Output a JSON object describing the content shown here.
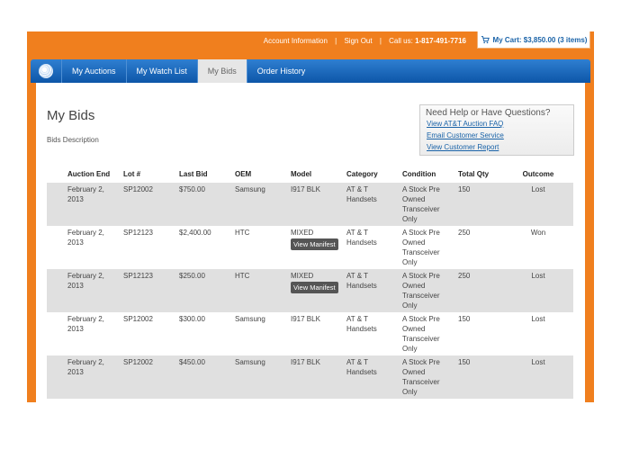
{
  "topbar": {
    "account_info": "Account Information",
    "sign_out": "Sign Out",
    "call_us_label": "Call us:",
    "phone": "1-817-491-7716",
    "cart": "My Cart: $3,850.00 (3 items)",
    "separator": "|"
  },
  "nav": {
    "logo_icon": "att-globe-icon",
    "items": [
      {
        "label": "My Auctions"
      },
      {
        "label": "My Watch List"
      },
      {
        "label": "My Bids"
      },
      {
        "label": "Order History"
      }
    ],
    "active_index": 2
  },
  "page": {
    "title": "My Bids",
    "description": "Bids Description"
  },
  "help": {
    "title": "Need Help or Have Questions?",
    "links": [
      "View AT&T Auction FAQ",
      "Email Customer Service",
      "View Customer Report"
    ]
  },
  "table": {
    "columns": [
      "Auction End",
      "Lot #",
      "Last Bid",
      "OEM",
      "Model",
      "Category",
      "Condition",
      "Total Qty",
      "Outcome"
    ],
    "manifest_label": "View Manifest",
    "rows": [
      {
        "auction_end": "February 2, 2013",
        "lot": "SP12002",
        "last_bid": "$750.00",
        "oem": "Samsung",
        "model": "I917 BLK",
        "manifest": false,
        "category": "AT & T Handsets",
        "condition": "A Stock Pre Owned Transceiver Only",
        "qty": "150",
        "outcome": "Lost"
      },
      {
        "auction_end": "February 2, 2013",
        "lot": "SP12123",
        "last_bid": "$2,400.00",
        "oem": "HTC",
        "model": "MIXED",
        "manifest": true,
        "category": "AT & T Handsets",
        "condition": "A Stock Pre Owned Transceiver Only",
        "qty": "250",
        "outcome": "Won"
      },
      {
        "auction_end": "February 2, 2013",
        "lot": "SP12123",
        "last_bid": "$250.00",
        "oem": "HTC",
        "model": "MIXED",
        "manifest": true,
        "category": "AT & T Handsets",
        "condition": "A Stock Pre Owned Transceiver Only",
        "qty": "250",
        "outcome": "Lost"
      },
      {
        "auction_end": "February 2, 2013",
        "lot": "SP12002",
        "last_bid": "$300.00",
        "oem": "Samsung",
        "model": "I917 BLK",
        "manifest": false,
        "category": "AT & T Handsets",
        "condition": "A Stock Pre Owned Transceiver Only",
        "qty": "150",
        "outcome": "Lost"
      },
      {
        "auction_end": "February 2, 2013",
        "lot": "SP12002",
        "last_bid": "$450.00",
        "oem": "Samsung",
        "model": "I917 BLK",
        "manifest": false,
        "category": "AT & T Handsets",
        "condition": "A Stock Pre Owned Transceiver Only",
        "qty": "150",
        "outcome": "Lost"
      }
    ]
  },
  "colors": {
    "brand_orange": "#f07f1e",
    "nav_blue": "#0d56a8",
    "link_blue": "#1a63a8",
    "row_shade": "#e0e0e0"
  }
}
